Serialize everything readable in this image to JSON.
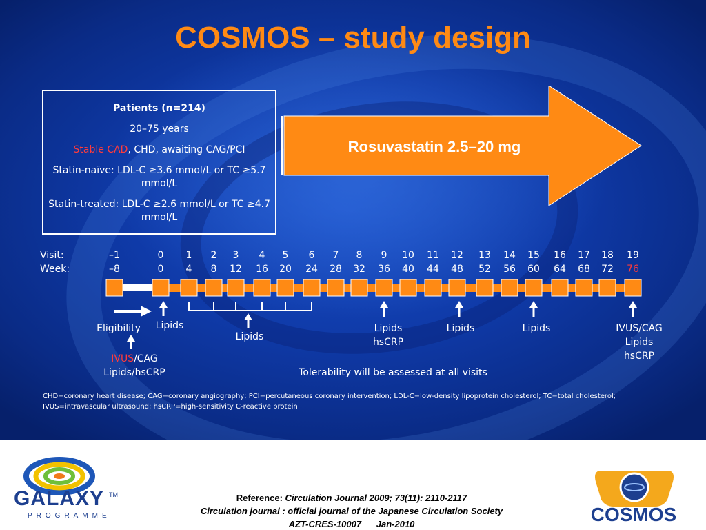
{
  "title": "COSMOS – study design",
  "patients": {
    "heading": "Patients (n=214)",
    "age": "20–75 years",
    "stable_cad": "Stable CAD",
    "conditions_rest": ", CHD, awaiting CAG/PCI",
    "statin_naive": "Statin-naïve: LDL-C ≥3.6 mmol/L or TC ≥5.7 mmol/L",
    "statin_treated": "Statin-treated: LDL-C ≥2.6 mmol/L or TC ≥4.7 mmol/L"
  },
  "treatment": {
    "label": "Rosuvastatin 2.5–20 mg"
  },
  "timeline": {
    "visit_label": "Visit:",
    "week_label": "Week:",
    "visits": [
      "–1",
      "0",
      "1",
      "2",
      "3",
      "4",
      "5",
      "6",
      "7",
      "8",
      "9",
      "10",
      "11",
      "12",
      "13",
      "14",
      "15",
      "16",
      "17",
      "18",
      "19"
    ],
    "weeks": [
      "–8",
      "0",
      "4",
      "8",
      "12",
      "16",
      "20",
      "24",
      "28",
      "32",
      "36",
      "40",
      "44",
      "48",
      "52",
      "56",
      "60",
      "64",
      "68",
      "72",
      "76"
    ],
    "last_week_highlight": true
  },
  "annotations": {
    "eligibility": "Eligibility",
    "screening_ivus": "IVUS",
    "screening_cag": "/CAG",
    "screening_lipids": "Lipids/hsCRP",
    "lipids_v0": "Lipids",
    "lipids_group": "Lipids",
    "v9_lipids": "Lipids",
    "v9_hscrp": "hsCRP",
    "v12_lipids": "Lipids",
    "v15_lipids": "Lipids",
    "v19_ivus": "IVUS/CAG",
    "v19_lipids": "Lipids",
    "v19_hscrp": "hsCRP",
    "tolerability": "Tolerability will be assessed at all visits"
  },
  "footnote": "CHD=coronary heart disease; CAG=coronary angiography; PCI=percutaneous coronary intervention; LDL-C=low-density lipoprotein cholesterol; TC=total cholesterol; IVUS=intravascular ultrasound; hsCRP=high-sensitivity C-reactive protein",
  "reference": {
    "prefix": "Reference: ",
    "citation": "Circulation Journal 2009; 73(11): 2110-2117",
    "journal": "Circulation journal : official journal of the Japanese Circulation Society",
    "code": "AZT-CRES-10007",
    "date": "Jan-2010"
  },
  "logos": {
    "galaxy_name": "GALAXY",
    "galaxy_tm": "TM",
    "galaxy_sub": "PROGRAMME",
    "cosmos_name": "COSMOS"
  },
  "colors": {
    "accent_orange": "#ff8a14",
    "highlight_red": "#ff3b3b",
    "background_blue": "#0f3aa8"
  }
}
